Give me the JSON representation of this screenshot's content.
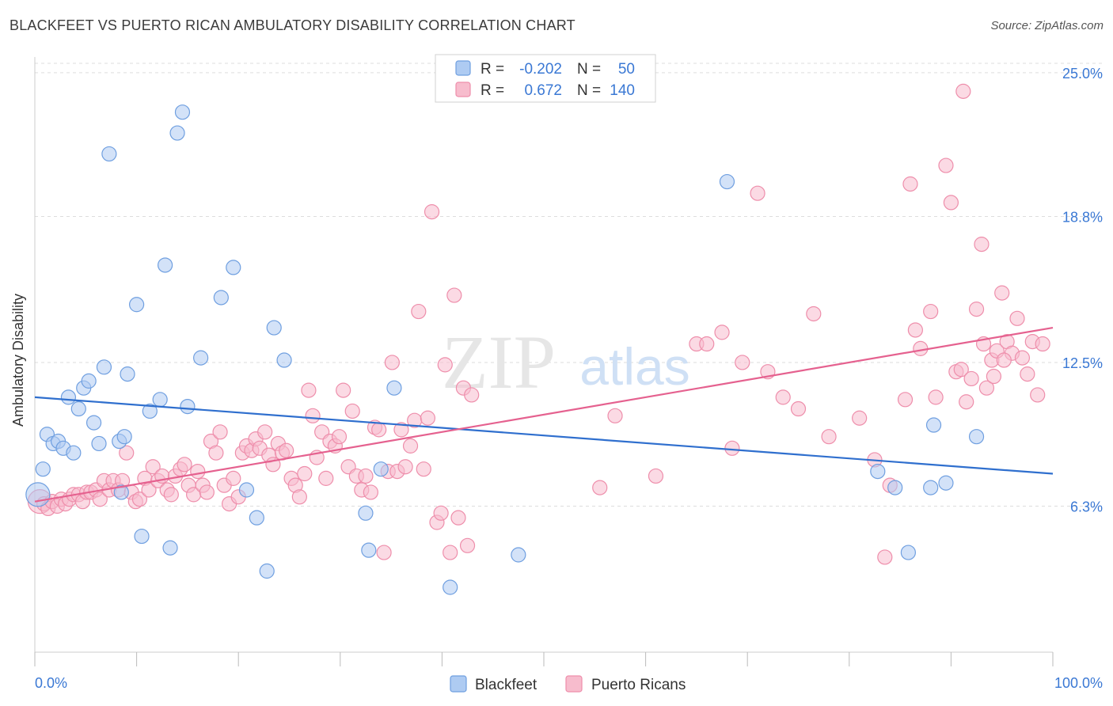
{
  "title": "BLACKFEET VS PUERTO RICAN AMBULATORY DISABILITY CORRELATION CHART",
  "source": "Source: ZipAtlas.com",
  "watermark": {
    "zip": "ZIP",
    "atlas": "atlas"
  },
  "legend": {
    "rows": [
      {
        "r_label": "R =",
        "r_value": "-0.202",
        "n_label": "N =",
        "n_value": "50"
      },
      {
        "r_label": "R =",
        "r_value": "0.672",
        "n_label": "N =",
        "n_value": "140"
      }
    ]
  },
  "bottom_legend": [
    "Blackfeet",
    "Puerto Ricans"
  ],
  "colors": {
    "blackfeet_fill": "#aecbf2",
    "blackfeet_stroke": "#6f9fe0",
    "blackfeet_line": "#2f6fce",
    "pr_fill": "#f7bccd",
    "pr_stroke": "#ee8eab",
    "pr_line": "#e5618f",
    "value_text": "#3a78d4",
    "grid": "#dddddd"
  },
  "chart_data": {
    "type": "scatter",
    "title": "BLACKFEET VS PUERTO RICAN AMBULATORY DISABILITY CORRELATION CHART",
    "xlabel": "",
    "ylabel": "Ambulatory Disability",
    "x_tick_labels": [
      "0.0%",
      "100.0%"
    ],
    "y_tick_labels": [
      "6.3%",
      "12.5%",
      "18.8%",
      "25.0%"
    ],
    "y_ticks": [
      6.3,
      12.5,
      18.8,
      25.0
    ],
    "xlim": [
      0,
      100
    ],
    "ylim": [
      0,
      26.5
    ],
    "grid": "horizontal dashed",
    "legend_position": "top-center",
    "series": [
      {
        "name": "Blackfeet",
        "r": -0.202,
        "n": 50,
        "trend": [
          [
            0,
            11.0
          ],
          [
            100,
            7.7
          ]
        ],
        "points": [
          [
            0.3,
            6.8,
            "big"
          ],
          [
            0.8,
            7.9
          ],
          [
            1.2,
            9.4
          ],
          [
            1.8,
            9.0
          ],
          [
            2.3,
            9.1
          ],
          [
            2.8,
            8.8
          ],
          [
            3.3,
            11.0
          ],
          [
            3.8,
            8.6
          ],
          [
            4.3,
            10.5
          ],
          [
            4.8,
            11.4
          ],
          [
            5.3,
            11.7
          ],
          [
            5.8,
            9.9
          ],
          [
            6.3,
            9.0
          ],
          [
            6.8,
            12.3
          ],
          [
            7.3,
            21.5
          ],
          [
            8.3,
            9.1
          ],
          [
            8.5,
            6.9
          ],
          [
            8.8,
            9.3
          ],
          [
            9.1,
            12.0
          ],
          [
            10.0,
            15.0
          ],
          [
            10.5,
            5.0
          ],
          [
            11.3,
            10.4
          ],
          [
            12.3,
            10.9
          ],
          [
            12.8,
            16.7
          ],
          [
            13.3,
            4.5
          ],
          [
            14.0,
            22.4
          ],
          [
            14.5,
            23.3
          ],
          [
            15.0,
            10.6
          ],
          [
            16.3,
            12.7
          ],
          [
            18.3,
            15.3
          ],
          [
            19.5,
            16.6
          ],
          [
            20.8,
            7.0
          ],
          [
            21.8,
            5.8
          ],
          [
            22.8,
            3.5
          ],
          [
            23.5,
            14.0
          ],
          [
            24.5,
            12.6
          ],
          [
            32.5,
            6.0
          ],
          [
            32.8,
            4.4
          ],
          [
            34.0,
            7.9
          ],
          [
            35.3,
            11.4
          ],
          [
            40.8,
            2.8
          ],
          [
            47.5,
            4.2
          ],
          [
            68.0,
            20.3
          ],
          [
            82.8,
            7.8
          ],
          [
            84.5,
            7.1
          ],
          [
            85.8,
            4.3
          ],
          [
            88.0,
            7.1
          ],
          [
            88.3,
            9.8
          ],
          [
            89.5,
            7.3
          ],
          [
            92.5,
            9.3
          ]
        ]
      },
      {
        "name": "Puerto Ricans",
        "r": 0.672,
        "n": 140,
        "trend": [
          [
            0,
            6.5
          ],
          [
            100,
            14.0
          ]
        ],
        "points": [
          [
            0.5,
            6.5,
            "big"
          ],
          [
            0.9,
            6.4
          ],
          [
            1.3,
            6.2
          ],
          [
            1.7,
            6.5
          ],
          [
            2.2,
            6.3
          ],
          [
            2.6,
            6.6
          ],
          [
            3.0,
            6.4
          ],
          [
            3.4,
            6.6
          ],
          [
            3.8,
            6.8
          ],
          [
            4.3,
            6.8
          ],
          [
            4.7,
            6.5
          ],
          [
            5.1,
            6.9
          ],
          [
            5.5,
            6.9
          ],
          [
            6.0,
            7.0
          ],
          [
            6.4,
            6.6
          ],
          [
            6.8,
            7.4
          ],
          [
            7.3,
            7.0
          ],
          [
            7.7,
            7.4
          ],
          [
            8.2,
            7.0
          ],
          [
            8.6,
            7.4
          ],
          [
            9.0,
            8.6
          ],
          [
            9.5,
            6.9
          ],
          [
            9.9,
            6.5
          ],
          [
            10.3,
            6.6
          ],
          [
            10.8,
            7.5
          ],
          [
            11.2,
            7.0
          ],
          [
            11.6,
            8.0
          ],
          [
            12.1,
            7.4
          ],
          [
            12.5,
            7.6
          ],
          [
            13.0,
            7.0
          ],
          [
            13.4,
            6.8
          ],
          [
            13.8,
            7.6
          ],
          [
            14.3,
            7.9
          ],
          [
            14.7,
            8.1
          ],
          [
            15.1,
            7.2
          ],
          [
            15.6,
            6.8
          ],
          [
            16.0,
            7.8
          ],
          [
            16.5,
            7.2
          ],
          [
            16.9,
            6.9
          ],
          [
            17.3,
            9.1
          ],
          [
            17.8,
            8.6
          ],
          [
            18.2,
            9.5
          ],
          [
            18.6,
            7.2
          ],
          [
            19.1,
            6.4
          ],
          [
            19.5,
            7.5
          ],
          [
            20.0,
            6.7
          ],
          [
            20.4,
            8.6
          ],
          [
            20.8,
            8.9
          ],
          [
            21.3,
            8.7
          ],
          [
            21.7,
            9.2
          ],
          [
            22.1,
            8.8
          ],
          [
            22.6,
            9.5
          ],
          [
            23.0,
            8.5
          ],
          [
            23.4,
            8.1
          ],
          [
            23.9,
            9.0
          ],
          [
            24.3,
            8.6
          ],
          [
            24.7,
            8.7
          ],
          [
            25.2,
            7.5
          ],
          [
            25.6,
            7.2
          ],
          [
            26.0,
            6.7
          ],
          [
            26.5,
            7.7
          ],
          [
            26.9,
            11.3
          ],
          [
            27.3,
            10.2
          ],
          [
            27.7,
            8.4
          ],
          [
            28.2,
            9.5
          ],
          [
            28.6,
            7.5
          ],
          [
            29.0,
            9.1
          ],
          [
            29.5,
            8.9
          ],
          [
            29.9,
            9.3
          ],
          [
            30.3,
            11.3
          ],
          [
            30.8,
            8.0
          ],
          [
            31.2,
            10.4
          ],
          [
            31.6,
            7.6
          ],
          [
            32.1,
            7.0
          ],
          [
            32.5,
            7.6
          ],
          [
            33.0,
            6.9
          ],
          [
            33.4,
            9.7
          ],
          [
            33.8,
            9.6
          ],
          [
            34.3,
            4.3
          ],
          [
            34.7,
            7.8
          ],
          [
            35.1,
            12.5
          ],
          [
            35.6,
            7.8
          ],
          [
            36.0,
            9.6
          ],
          [
            36.4,
            8.0
          ],
          [
            36.9,
            8.9
          ],
          [
            37.3,
            10.0
          ],
          [
            37.7,
            14.7
          ],
          [
            38.2,
            7.9
          ],
          [
            38.6,
            10.1
          ],
          [
            39.0,
            19.0
          ],
          [
            39.5,
            5.6
          ],
          [
            39.9,
            6.0
          ],
          [
            40.3,
            12.4
          ],
          [
            40.8,
            4.3
          ],
          [
            41.2,
            15.4
          ],
          [
            41.6,
            5.8
          ],
          [
            42.1,
            11.4
          ],
          [
            42.5,
            4.6
          ],
          [
            42.9,
            11.1
          ],
          [
            55.5,
            7.1
          ],
          [
            57.0,
            10.2
          ],
          [
            61.0,
            7.6
          ],
          [
            65.0,
            13.3
          ],
          [
            66.0,
            13.3
          ],
          [
            67.5,
            13.8
          ],
          [
            68.5,
            8.8
          ],
          [
            69.5,
            12.5
          ],
          [
            71.0,
            19.8
          ],
          [
            72.0,
            12.1
          ],
          [
            73.5,
            11.0
          ],
          [
            75.0,
            10.5
          ],
          [
            76.5,
            14.6
          ],
          [
            78.0,
            9.3
          ],
          [
            81.0,
            10.1
          ],
          [
            82.5,
            8.3
          ],
          [
            83.5,
            4.1
          ],
          [
            84.0,
            7.2
          ],
          [
            86.0,
            20.2
          ],
          [
            87.0,
            13.1
          ],
          [
            88.0,
            14.7
          ],
          [
            89.5,
            21.0
          ],
          [
            90.0,
            19.4
          ],
          [
            90.5,
            12.1
          ],
          [
            91.0,
            12.2
          ],
          [
            91.5,
            10.8
          ],
          [
            92.0,
            11.8
          ],
          [
            92.5,
            14.8
          ],
          [
            93.0,
            17.6
          ],
          [
            93.5,
            11.4
          ],
          [
            94.0,
            12.6
          ],
          [
            94.5,
            13.0
          ],
          [
            95.0,
            15.5
          ],
          [
            95.5,
            13.4
          ],
          [
            96.0,
            12.9
          ],
          [
            96.5,
            14.4
          ],
          [
            97.0,
            12.7
          ],
          [
            97.5,
            12.0
          ],
          [
            98.0,
            13.4
          ],
          [
            98.5,
            11.1
          ],
          [
            99.0,
            13.3
          ],
          [
            85.5,
            10.9
          ],
          [
            86.5,
            13.9
          ],
          [
            88.5,
            11.0
          ],
          [
            91.2,
            24.2
          ],
          [
            93.2,
            13.3
          ],
          [
            94.2,
            11.9
          ],
          [
            95.2,
            12.6
          ]
        ]
      }
    ]
  }
}
